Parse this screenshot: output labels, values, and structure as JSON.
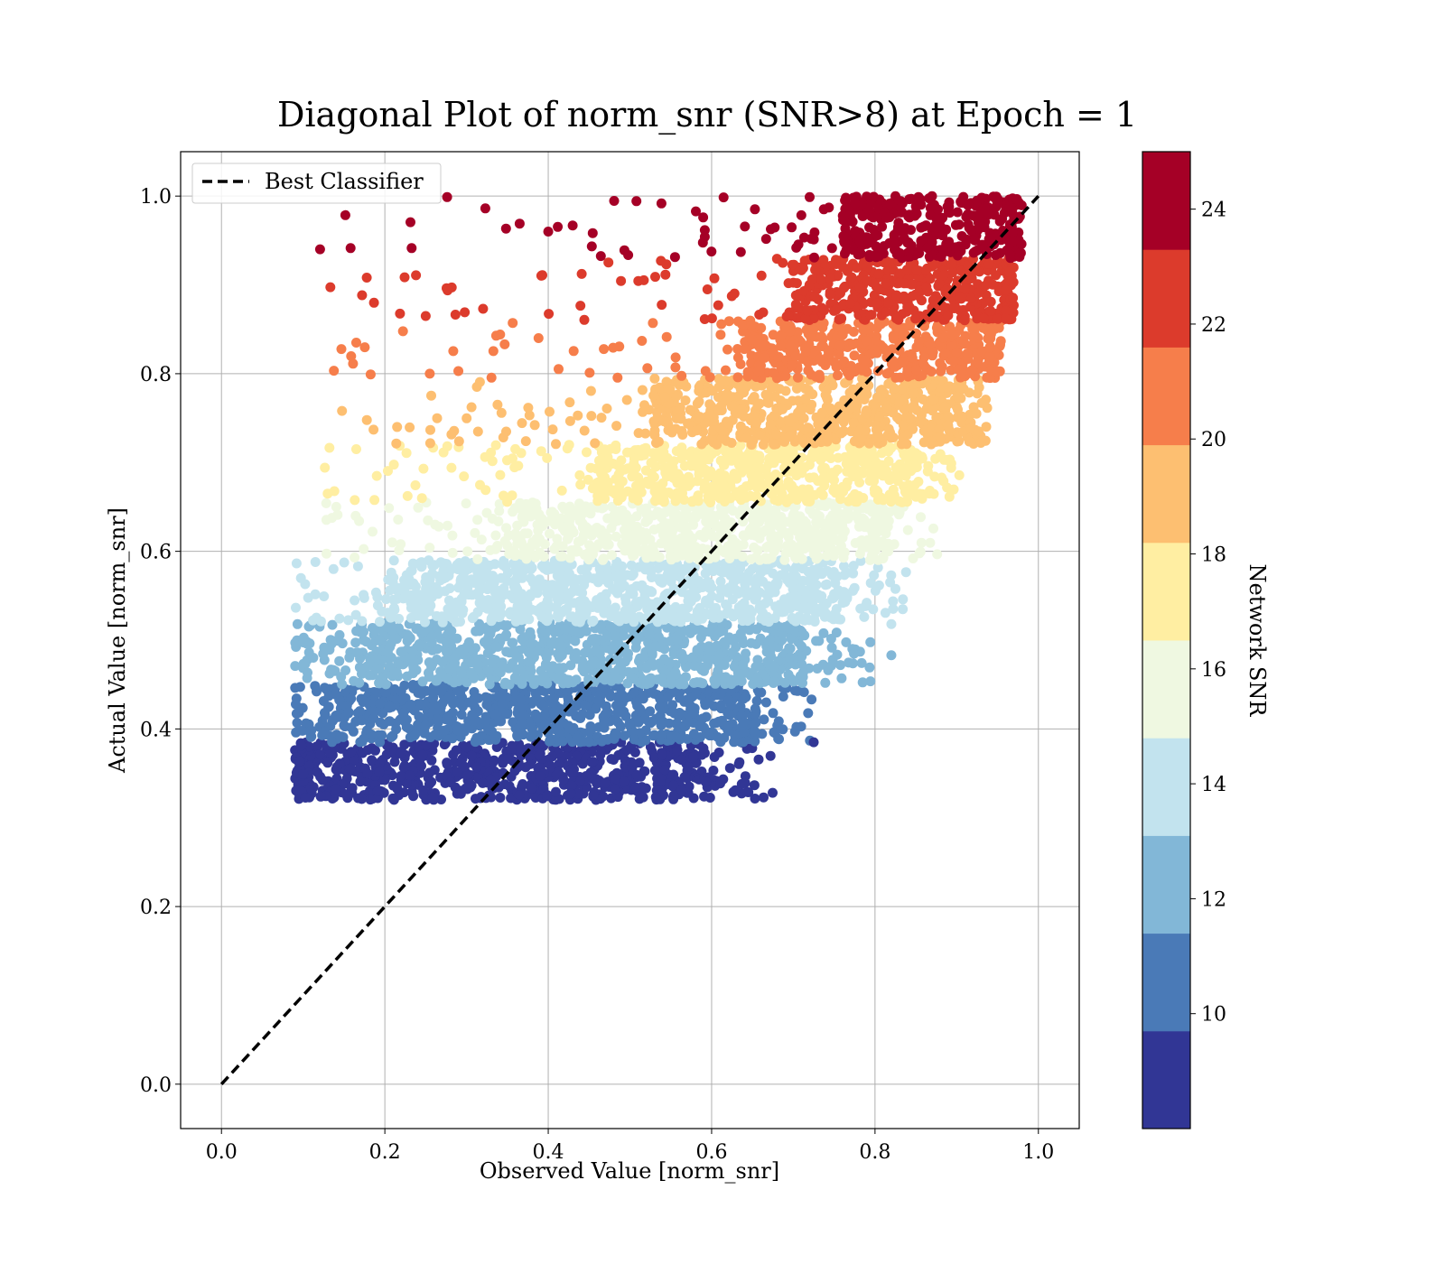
{
  "chart_data": {
    "type": "scatter",
    "title": "Diagonal Plot of norm_snr (SNR>8) at Epoch = 1",
    "xlabel": "Observed Value [norm_snr]",
    "ylabel": "Actual Value [norm_snr]",
    "xlim": [
      -0.05,
      1.05
    ],
    "ylim": [
      -0.05,
      1.05
    ],
    "xticks": [
      "0.0",
      "0.2",
      "0.4",
      "0.6",
      "0.8",
      "1.0"
    ],
    "yticks": [
      "0.0",
      "0.2",
      "0.4",
      "0.6",
      "0.8",
      "1.0"
    ],
    "tick_values": [
      0.0,
      0.2,
      0.4,
      0.6,
      0.8,
      1.0
    ],
    "grid": true,
    "legend": {
      "label": "Best Classifier",
      "placement": "upper-left"
    },
    "reference_line": {
      "name": "Best Classifier",
      "x": [
        0.0,
        1.0
      ],
      "y": [
        0.0,
        1.0
      ],
      "style": "dashed",
      "color": "#000000"
    },
    "colorbar": {
      "label": "Network SNR",
      "range": [
        8,
        25
      ],
      "ticks": [
        "10",
        "12",
        "14",
        "16",
        "18",
        "20",
        "22",
        "24"
      ],
      "tick_values": [
        10,
        12,
        14,
        16,
        18,
        20,
        22,
        24
      ],
      "bins": [
        {
          "min": 8,
          "max": 9.7,
          "color": "#313695"
        },
        {
          "min": 9.7,
          "max": 11.4,
          "color": "#4a7ab7"
        },
        {
          "min": 11.4,
          "max": 13.1,
          "color": "#82b7d7"
        },
        {
          "min": 13.1,
          "max": 14.8,
          "color": "#c2e3ee"
        },
        {
          "min": 14.8,
          "max": 16.5,
          "color": "#eff8e1"
        },
        {
          "min": 16.5,
          "max": 18.2,
          "color": "#ffeea2"
        },
        {
          "min": 18.2,
          "max": 19.9,
          "color": "#fdbf71"
        },
        {
          "min": 19.9,
          "max": 21.6,
          "color": "#f67e4b"
        },
        {
          "min": 21.6,
          "max": 23.3,
          "color": "#dc3b2c"
        },
        {
          "min": 23.3,
          "max": 25,
          "color": "#a50026"
        }
      ]
    },
    "bands": [
      {
        "snr_bin": 0,
        "y": [
          0.32,
          0.385
        ],
        "x": [
          0.1,
          0.59
        ],
        "scatter_x_max": 0.68
      },
      {
        "snr_bin": 1,
        "y": [
          0.385,
          0.45
        ],
        "x": [
          0.14,
          0.65
        ],
        "scatter_x_max": 0.73
      },
      {
        "snr_bin": 2,
        "y": [
          0.45,
          0.52
        ],
        "x": [
          0.17,
          0.71
        ],
        "scatter_x_max": 0.8
      },
      {
        "snr_bin": 3,
        "y": [
          0.52,
          0.59
        ],
        "x": [
          0.23,
          0.76
        ],
        "scatter_x_max": 0.84
      },
      {
        "snr_bin": 4,
        "y": [
          0.59,
          0.655
        ],
        "x": [
          0.36,
          0.81
        ],
        "scatter_x_max": 0.88
      },
      {
        "snr_bin": 5,
        "y": [
          0.655,
          0.72
        ],
        "x": [
          0.46,
          0.85
        ],
        "scatter_x_max": 0.91
      },
      {
        "snr_bin": 6,
        "y": [
          0.72,
          0.795
        ],
        "x": [
          0.53,
          0.9
        ],
        "scatter_x_max": 0.94
      },
      {
        "snr_bin": 7,
        "y": [
          0.795,
          0.86
        ],
        "x": [
          0.64,
          0.94
        ],
        "scatter_x_max": 0.955
      },
      {
        "snr_bin": 8,
        "y": [
          0.86,
          0.93
        ],
        "x": [
          0.7,
          0.96
        ],
        "scatter_x_max": 0.97
      },
      {
        "snr_bin": 9,
        "y": [
          0.93,
          1.0
        ],
        "x": [
          0.76,
          0.965
        ],
        "scatter_x_max": 0.98
      }
    ],
    "outliers": [
      {
        "x": 0.4,
        "y": 0.96,
        "snr_bin": 9
      },
      {
        "x": 0.25,
        "y": 0.865,
        "snr_bin": 8
      },
      {
        "x": 0.165,
        "y": 0.835,
        "snr_bin": 7
      },
      {
        "x": 0.255,
        "y": 0.8,
        "snr_bin": 7
      },
      {
        "x": 0.29,
        "y": 0.803,
        "snr_bin": 7
      },
      {
        "x": 0.13,
        "y": 0.665,
        "snr_bin": 5
      },
      {
        "x": 0.165,
        "y": 0.715,
        "snr_bin": 5
      },
      {
        "x": 0.215,
        "y": 0.74,
        "snr_bin": 6
      },
      {
        "x": 0.725,
        "y": 0.385,
        "snr_bin": 0
      },
      {
        "x": 0.82,
        "y": 0.483,
        "snr_bin": 2
      },
      {
        "x": 0.82,
        "y": 0.518,
        "snr_bin": 3
      },
      {
        "x": 0.115,
        "y": 0.588,
        "snr_bin": 3
      }
    ]
  }
}
